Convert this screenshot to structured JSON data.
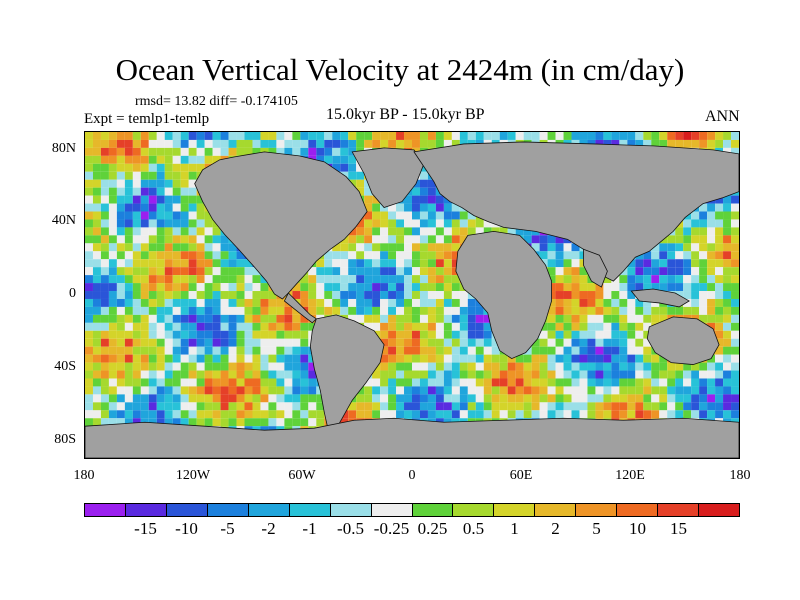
{
  "title": "Ocean Vertical Velocity at 2424m (in cm/day)",
  "stats": "rmsd= 13.82 diff= -0.174105",
  "expt": "Expt = temlp1-temlp",
  "period": "15.0kyr BP - 15.0kyr BP",
  "season": "ANN",
  "lat_labels": [
    "80N",
    "40N",
    "0",
    "40S",
    "80S"
  ],
  "lon_labels": [
    "180",
    "120W",
    "60W",
    "0",
    "60E",
    "120E",
    "180"
  ],
  "land_color": "#a0a0a0",
  "colorbar": {
    "colors": [
      "#9b20ef",
      "#5a2ae0",
      "#2a55d8",
      "#1c80dd",
      "#20a5dc",
      "#28c2d8",
      "#9adfe8",
      "#eeeeee",
      "#5fd23a",
      "#a6d92e",
      "#d4d42a",
      "#e6b82a",
      "#ee9426",
      "#ee6a22",
      "#e54028",
      "#d81d1d"
    ],
    "labels": [
      "-15",
      "-10",
      "-5",
      "-2",
      "-1",
      "-0.5",
      "-0.25",
      "0.25",
      "0.5",
      "1",
      "2",
      "5",
      "10",
      "15"
    ]
  },
  "field": {
    "field_rms": "13.82",
    "field_diff": "-0.174105"
  }
}
